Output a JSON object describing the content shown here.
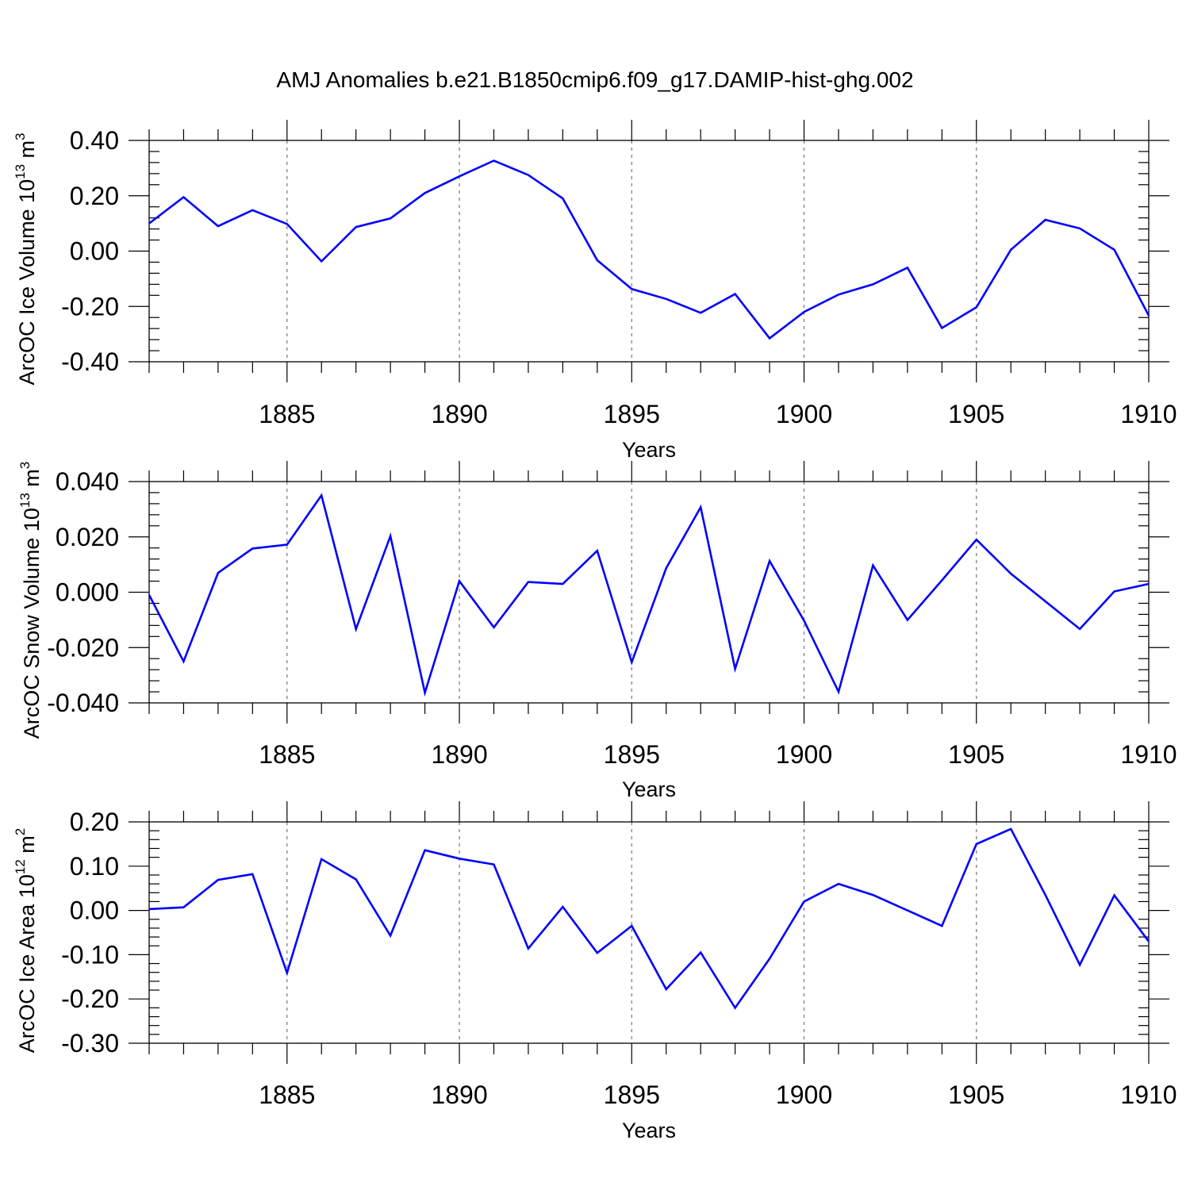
{
  "title": "AMJ Anomalies b.e21.B1850cmip6.f09_g17.DAMIP-hist-ghg.002",
  "colors": {
    "line": "#0000ff",
    "grid": "#777777",
    "axis": "#000000"
  },
  "chart_data": [
    {
      "type": "line",
      "title": "AMJ Anomalies b.e21.B1850cmip6.f09_g17.DAMIP-hist-ghg.002",
      "xlabel": "Years",
      "ylabel": "ArcOC Ice Volume 10",
      "ylabel_sup": "13",
      "ylabel_unit": "m",
      "ylabel_unit_sup": "3",
      "xlim": [
        1881,
        1910
      ],
      "ylim": [
        -0.4,
        0.4
      ],
      "yticks": [
        -0.4,
        -0.2,
        0.0,
        0.2,
        0.4
      ],
      "ytick_labels": [
        "-0.40",
        "-0.20",
        "0.00",
        "0.20",
        "0.40"
      ],
      "xticks": [
        1885,
        1890,
        1895,
        1900,
        1905,
        1910
      ],
      "xtick_labels": [
        "1885",
        "1890",
        "1895",
        "1900",
        "1905",
        "1910"
      ],
      "grid": "x-dashed",
      "x": [
        1881,
        1882,
        1883,
        1884,
        1885,
        1886,
        1887,
        1888,
        1889,
        1890,
        1891,
        1892,
        1893,
        1894,
        1895,
        1896,
        1897,
        1898,
        1899,
        1900,
        1901,
        1902,
        1903,
        1904,
        1905,
        1906,
        1907,
        1908,
        1909,
        1910
      ],
      "series": [
        {
          "values": [
            0.1,
            0.195,
            0.09,
            0.148,
            0.098,
            -0.037,
            0.087,
            0.118,
            0.21,
            0.27,
            0.327,
            0.275,
            0.19,
            -0.033,
            -0.137,
            -0.173,
            -0.223,
            -0.155,
            -0.315,
            -0.22,
            -0.157,
            -0.12,
            -0.06,
            -0.278,
            -0.203,
            0.005,
            0.113,
            0.082,
            0.005,
            -0.233
          ]
        }
      ]
    },
    {
      "type": "line",
      "xlabel": "Years",
      "ylabel": "ArcOC Snow Volume 10",
      "ylabel_sup": "13",
      "ylabel_unit": "m",
      "ylabel_unit_sup": "3",
      "xlim": [
        1881,
        1910
      ],
      "ylim": [
        -0.04,
        0.04
      ],
      "yticks": [
        -0.04,
        -0.02,
        0.0,
        0.02,
        0.04
      ],
      "ytick_labels": [
        "-0.040",
        "-0.020",
        "0.000",
        "0.020",
        "0.040"
      ],
      "xticks": [
        1885,
        1890,
        1895,
        1900,
        1905,
        1910
      ],
      "xtick_labels": [
        "1885",
        "1890",
        "1895",
        "1900",
        "1905",
        "1910"
      ],
      "grid": "x-dashed",
      "x": [
        1881,
        1882,
        1883,
        1884,
        1885,
        1886,
        1887,
        1888,
        1889,
        1890,
        1891,
        1892,
        1893,
        1894,
        1895,
        1896,
        1897,
        1898,
        1899,
        1900,
        1901,
        1902,
        1903,
        1904,
        1905,
        1906,
        1907,
        1908,
        1909,
        1910
      ],
      "series": [
        {
          "values": [
            -0.001,
            -0.025,
            0.007,
            0.0158,
            0.0172,
            0.035,
            -0.0133,
            0.0203,
            -0.0363,
            0.004,
            -0.0127,
            0.0037,
            0.003,
            0.015,
            -0.0253,
            0.0087,
            0.0307,
            -0.0277,
            0.0113,
            -0.0103,
            -0.036,
            0.0097,
            -0.01,
            0.0043,
            0.019,
            0.0067,
            -0.0033,
            -0.0133,
            0.0003,
            0.003
          ]
        }
      ]
    },
    {
      "type": "line",
      "xlabel": "Years",
      "ylabel": "ArcOC Ice Area 10",
      "ylabel_sup": "12",
      "ylabel_unit": "m",
      "ylabel_unit_sup": "2",
      "xlim": [
        1881,
        1910
      ],
      "ylim": [
        -0.3,
        0.2
      ],
      "yticks": [
        -0.3,
        -0.2,
        -0.1,
        0.0,
        0.1,
        0.2
      ],
      "ytick_labels": [
        "-0.30",
        "-0.20",
        "-0.10",
        "0.00",
        "0.10",
        "0.20"
      ],
      "xticks": [
        1885,
        1890,
        1895,
        1900,
        1905,
        1910
      ],
      "xtick_labels": [
        "1885",
        "1890",
        "1895",
        "1900",
        "1905",
        "1910"
      ],
      "grid": "x-dashed",
      "x": [
        1881,
        1882,
        1883,
        1884,
        1885,
        1886,
        1887,
        1888,
        1889,
        1890,
        1891,
        1892,
        1893,
        1894,
        1895,
        1896,
        1897,
        1898,
        1899,
        1900,
        1901,
        1902,
        1903,
        1904,
        1905,
        1906,
        1907,
        1908,
        1909,
        1910
      ],
      "series": [
        {
          "values": [
            0.003,
            0.007,
            0.069,
            0.082,
            -0.141,
            0.116,
            0.07,
            -0.057,
            0.136,
            0.117,
            0.104,
            -0.086,
            0.008,
            -0.096,
            -0.035,
            -0.178,
            -0.095,
            -0.22,
            -0.109,
            0.02,
            0.06,
            0.035,
            0.0,
            -0.035,
            0.15,
            0.184,
            0.035,
            -0.123,
            0.034,
            -0.07
          ]
        }
      ]
    }
  ]
}
